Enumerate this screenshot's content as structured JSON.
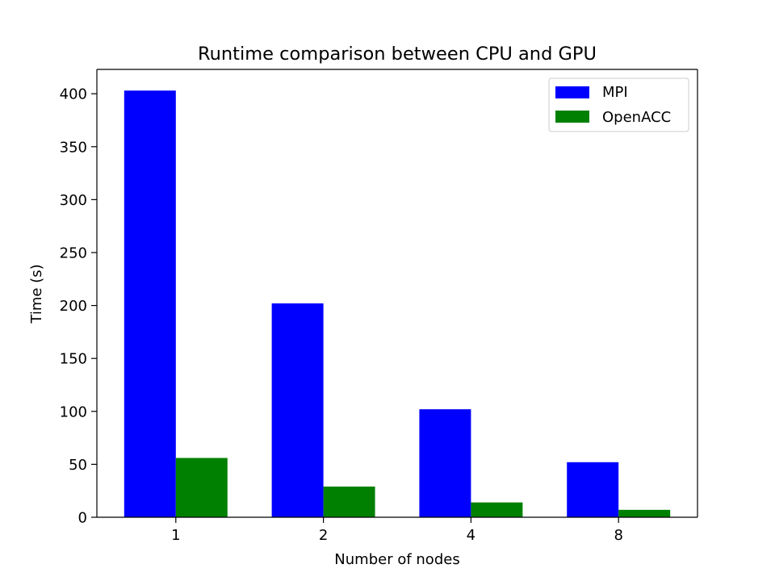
{
  "chart_data": {
    "type": "bar",
    "title": "Runtime comparison between CPU and GPU",
    "xlabel": "Number of nodes",
    "ylabel": "Time (s)",
    "categories": [
      "1",
      "2",
      "4",
      "8"
    ],
    "series": [
      {
        "name": "MPI",
        "color": "#0000ff",
        "values": [
          403,
          202,
          102,
          52
        ]
      },
      {
        "name": "OpenACC",
        "color": "#008000",
        "values": [
          56,
          29,
          14,
          7
        ]
      }
    ],
    "ylim": [
      0,
      423
    ],
    "yticks": [
      0,
      50,
      100,
      150,
      200,
      250,
      300,
      350,
      400
    ],
    "grid": false,
    "legend": "top-right"
  }
}
